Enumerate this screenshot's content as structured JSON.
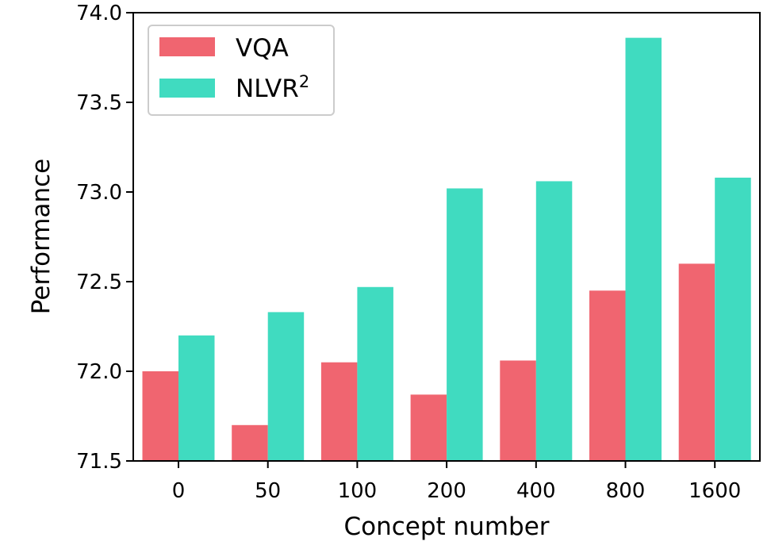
{
  "chart_data": {
    "type": "bar",
    "xlabel": "Concept number",
    "ylabel": "Performance",
    "categories": [
      "0",
      "50",
      "100",
      "200",
      "400",
      "800",
      "1600"
    ],
    "series": [
      {
        "name": "VQA",
        "color": "#f06570",
        "values": [
          72.0,
          71.7,
          72.05,
          71.87,
          72.06,
          72.45,
          72.6
        ]
      },
      {
        "name": "NLVR",
        "name_superscript": "2",
        "color": "#40dbc0",
        "values": [
          72.2,
          72.33,
          72.47,
          73.02,
          73.06,
          73.86,
          73.08
        ]
      }
    ],
    "ylim": [
      71.5,
      74.0
    ],
    "yticks": [
      "71.5",
      "72.0",
      "72.5",
      "73.0",
      "73.5",
      "74.0"
    ],
    "grid": false,
    "legend_position": "top-left"
  }
}
